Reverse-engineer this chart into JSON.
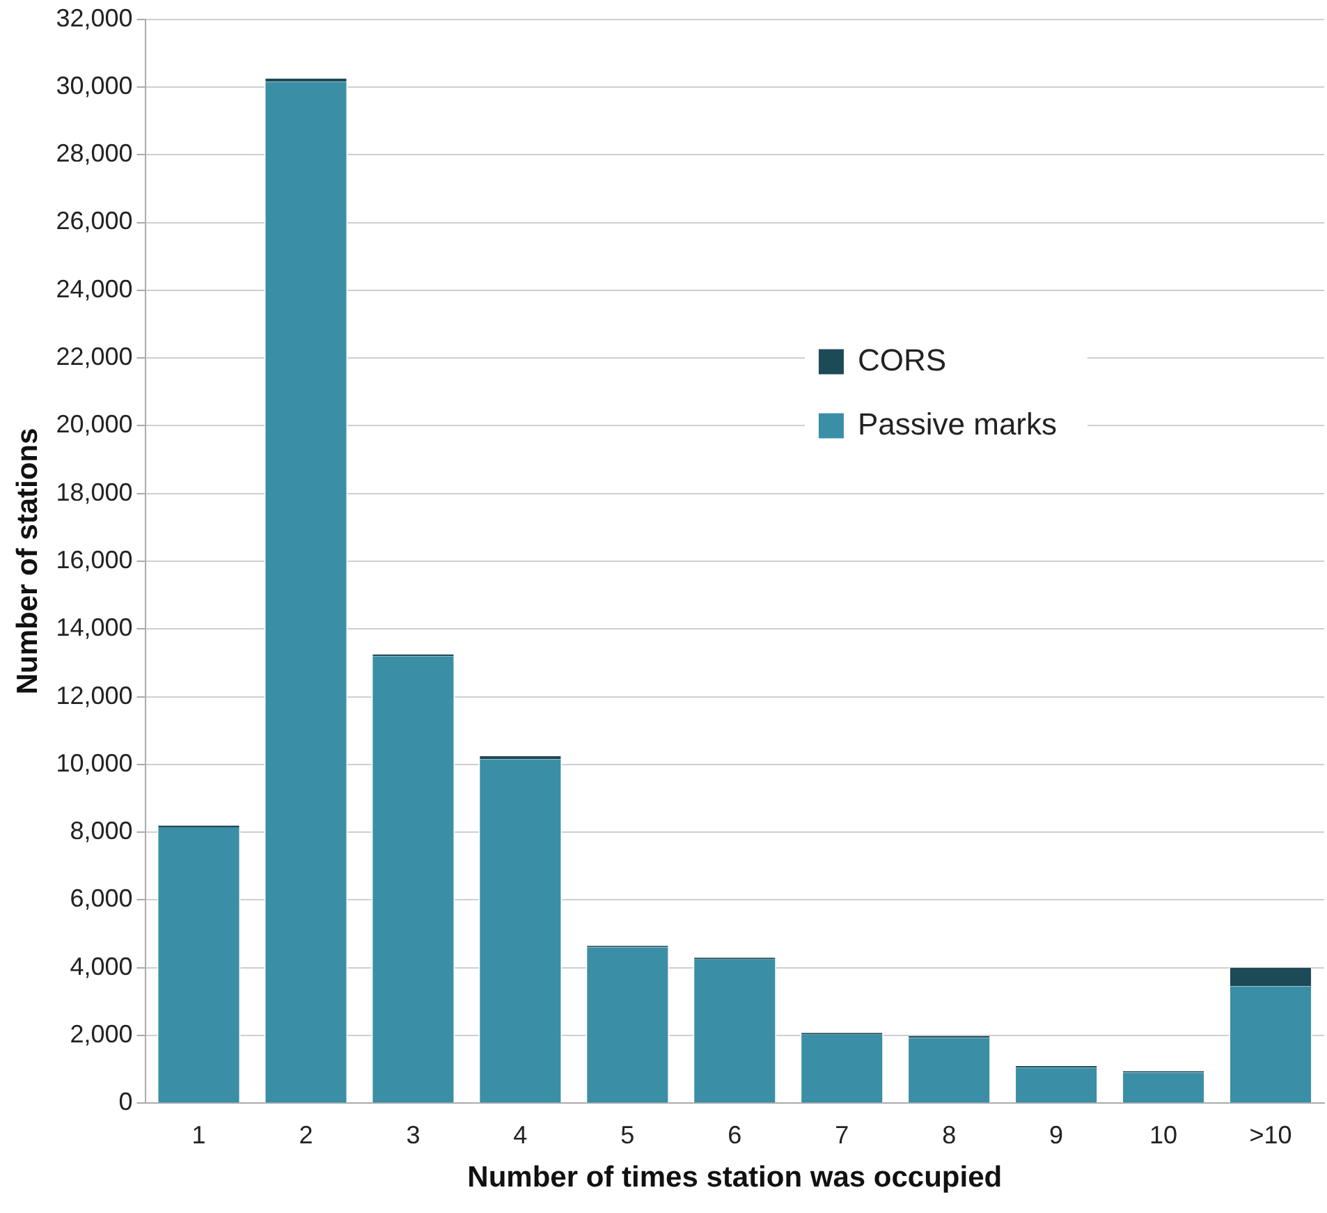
{
  "chart_data": {
    "type": "bar",
    "stacked": true,
    "xlabel": "Number of times station was occupied",
    "ylabel": "Number of stations",
    "categories": [
      "1",
      "2",
      "3",
      "4",
      "5",
      "6",
      "7",
      "8",
      "9",
      "10",
      ">10"
    ],
    "series": [
      {
        "name": "Passive marks",
        "color": "#3a8fa6",
        "values": [
          8150,
          30150,
          13200,
          10150,
          4600,
          4250,
          2030,
          1930,
          1050,
          900,
          3450
        ]
      },
      {
        "name": "CORS",
        "color": "#1d4a57",
        "values": [
          50,
          100,
          50,
          100,
          50,
          50,
          50,
          50,
          50,
          50,
          550
        ]
      }
    ],
    "ylim": [
      0,
      32000
    ],
    "yticks": [
      {
        "value": 0,
        "label": "0"
      },
      {
        "value": 2000,
        "label": "2,000"
      },
      {
        "value": 4000,
        "label": "4,000"
      },
      {
        "value": 6000,
        "label": "6,000"
      },
      {
        "value": 8000,
        "label": "8,000"
      },
      {
        "value": 10000,
        "label": "10,000"
      },
      {
        "value": 12000,
        "label": "12,000"
      },
      {
        "value": 14000,
        "label": "14,000"
      },
      {
        "value": 16000,
        "label": "16,000"
      },
      {
        "value": 18000,
        "label": "18,000"
      },
      {
        "value": 20000,
        "label": "20,000"
      },
      {
        "value": 22000,
        "label": "22,000"
      },
      {
        "value": 24000,
        "label": "24,000"
      },
      {
        "value": 26000,
        "label": "26,000"
      },
      {
        "value": 28000,
        "label": "28,000"
      },
      {
        "value": 30000,
        "label": "30,000"
      },
      {
        "value": 32000,
        "label": "32,000"
      }
    ],
    "grid": "y",
    "legend": "right"
  }
}
